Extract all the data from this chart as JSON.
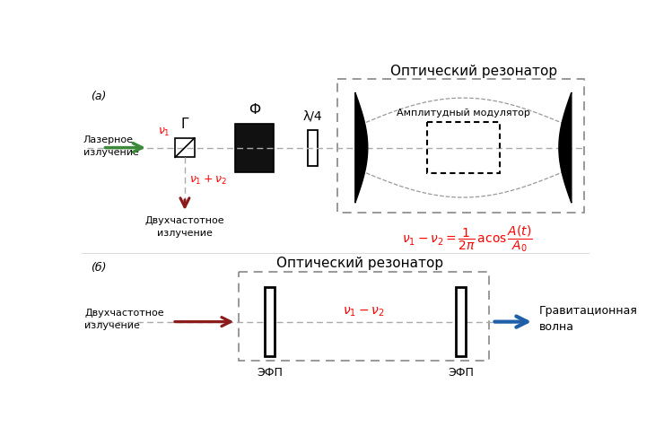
{
  "bg_color": "#ffffff",
  "title_a": "Оптический резонатор",
  "title_b": "Оптический резонатор",
  "label_a": "(а)",
  "label_b": "(б)",
  "laser_label": "Лазерное\nизлучение",
  "G_label": "Г",
  "F_label": "Ф",
  "waveplate_label": "λ/4",
  "modulator_label": "Амплитудный модулятор",
  "nu1_label": "ν₁",
  "nu1_nu2_label": "ν₁ + ν₂",
  "dual_freq_label": "Двухчастотное\nизлучение",
  "dual_freq_label_b": "Двухчастотное\nизлучение",
  "efp_label": "ЭФП",
  "grav_label": "Гравитационная\nволна",
  "nu_diff_label_b": "ν₁ – ν₂",
  "red_color": "#ff0000",
  "dark_red": "#8b1a1a",
  "green_color": "#3a8a3a",
  "blue_color": "#1e5fa8",
  "black_color": "#000000"
}
